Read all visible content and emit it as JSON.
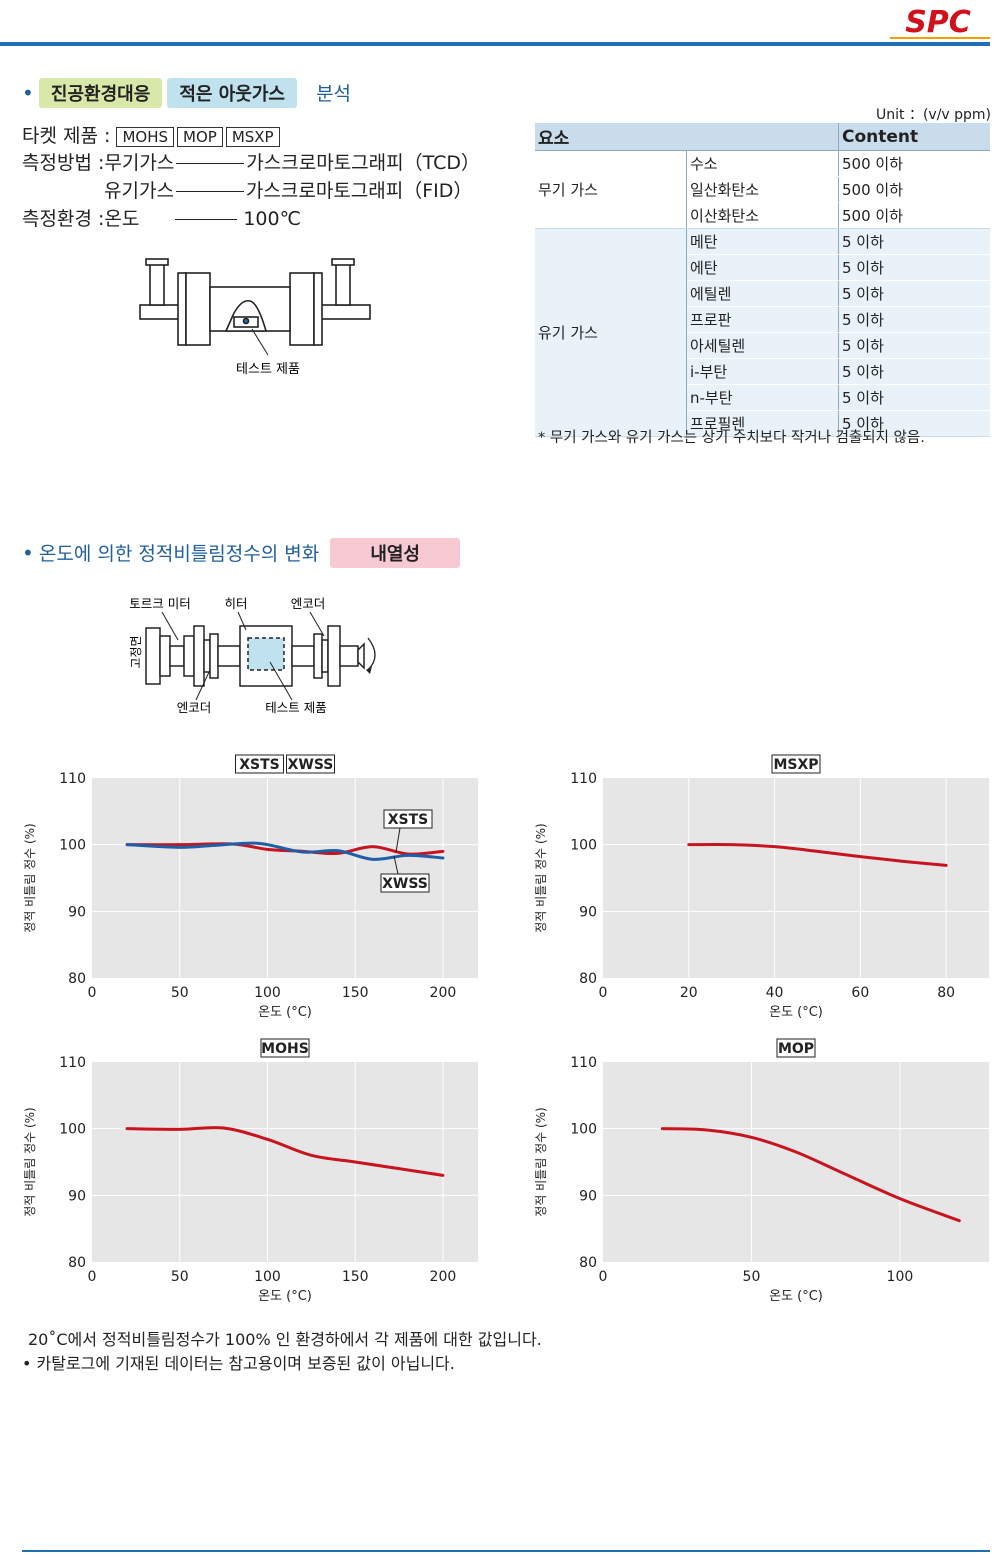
{
  "brand": {
    "logo_text": "SPC"
  },
  "section1": {
    "tag1": "진공환경대응",
    "tag2": "적은 아웃가스",
    "suffix": "분석",
    "target_label": "타켓 제품 :",
    "targets": [
      "MOHS",
      "MOP",
      "MSXP"
    ],
    "method_label": "측정방법 :",
    "method1_left": "무기가스",
    "method1_right": "가스크로마토그래피（TCD）",
    "method2_left": "유기가스",
    "method2_right": "가스크로마토그래피（FID）",
    "env_label": "측정환경 :",
    "env_left": "온도",
    "env_right": "100℃",
    "diagram_label": "테스트 제품"
  },
  "gas_table": {
    "unit": "Unit ：(v/v ppm)",
    "header": {
      "element": "요소",
      "content": "Content"
    },
    "groups": [
      {
        "name": "무기 가스",
        "rows": [
          {
            "gas": "수소",
            "value": "500 이하"
          },
          {
            "gas": "일산화탄소",
            "value": "500 이하"
          },
          {
            "gas": "이산화탄소",
            "value": "500 이하"
          }
        ]
      },
      {
        "name": "유기 가스",
        "rows": [
          {
            "gas": "메탄",
            "value": "5 이하"
          },
          {
            "gas": "에탄",
            "value": "5 이하"
          },
          {
            "gas": "에틸렌",
            "value": "5 이하"
          },
          {
            "gas": "프로판",
            "value": "5 이하"
          },
          {
            "gas": "아세틸렌",
            "value": "5 이하"
          },
          {
            "gas": "i-부탄",
            "value": "5 이하"
          },
          {
            "gas": "n-부탄",
            "value": "5 이하"
          },
          {
            "gas": "프로필렌",
            "value": "5 이하"
          }
        ]
      }
    ],
    "note": "* 무기 가스와 유기 가스는 상기 수치보다 작거나 검출되지 않음."
  },
  "section2": {
    "title": "온도에 의한 정적비틀림정수의 변화",
    "tag": "내열성",
    "diagram": {
      "torque_meter": "토르크 미터",
      "heater": "히터",
      "encoder_top": "엔코더",
      "fixed": "고정면",
      "encoder_bottom": "엔코더",
      "test_product": "테스트 제품"
    }
  },
  "colors": {
    "red": "#c8141e",
    "blue": "#1f5fa8",
    "plot_bg": "#e6e6e6",
    "accent": "#1f6fb5"
  },
  "chart_data": [
    {
      "type": "line",
      "title_boxes": [
        "XSTS",
        "XWSS"
      ],
      "xlabel": "온도 (°C)",
      "ylabel": "정적 비틀림 정수 (%)",
      "xlim": [
        0,
        220
      ],
      "ylim": [
        80,
        110
      ],
      "xticks": [
        0,
        50,
        100,
        150,
        200
      ],
      "yticks": [
        80,
        90,
        100,
        110
      ],
      "series": [
        {
          "name": "XSTS",
          "color": "#c8141e",
          "x": [
            20,
            50,
            80,
            100,
            120,
            140,
            160,
            180,
            200
          ],
          "y": [
            100,
            100,
            100.1,
            99.3,
            99.0,
            98.7,
            99.7,
            98.6,
            99.0
          ]
        },
        {
          "name": "XWSS",
          "color": "#1f5fa8",
          "x": [
            20,
            50,
            70,
            95,
            120,
            140,
            160,
            180,
            200
          ],
          "y": [
            100,
            99.6,
            99.9,
            100.2,
            98.9,
            99.1,
            97.8,
            98.4,
            98.0
          ]
        }
      ]
    },
    {
      "type": "line",
      "title_boxes": [
        "MSXP"
      ],
      "xlabel": "온도 (°C)",
      "ylabel": "정적 비틀림 정수 (%)",
      "xlim": [
        0,
        90
      ],
      "ylim": [
        80,
        110
      ],
      "xticks": [
        0,
        20,
        40,
        60,
        80
      ],
      "yticks": [
        80,
        90,
        100,
        110
      ],
      "series": [
        {
          "color": "#c8141e",
          "x": [
            20,
            30,
            40,
            50,
            60,
            70,
            80
          ],
          "y": [
            100,
            100,
            99.7,
            99.0,
            98.2,
            97.5,
            96.9
          ]
        }
      ]
    },
    {
      "type": "line",
      "title_boxes": [
        "MOHS"
      ],
      "xlabel": "온도 (°C)",
      "ylabel": "정적 비틀림 정수 (%)",
      "xlim": [
        0,
        220
      ],
      "ylim": [
        80,
        110
      ],
      "xticks": [
        0,
        50,
        100,
        150,
        200
      ],
      "yticks": [
        80,
        90,
        100,
        110
      ],
      "series": [
        {
          "color": "#c8141e",
          "x": [
            20,
            50,
            75,
            100,
            125,
            150,
            175,
            200
          ],
          "y": [
            100,
            99.9,
            100.1,
            98.4,
            96.0,
            95.0,
            94.0,
            93.0
          ]
        }
      ]
    },
    {
      "type": "line",
      "title_boxes": [
        "MOP"
      ],
      "xlabel": "온도 (°C)",
      "ylabel": "정적 비틀림 정수 (%)",
      "xlim": [
        0,
        130
      ],
      "ylim": [
        80,
        110
      ],
      "xticks": [
        0,
        50,
        100
      ],
      "yticks": [
        80,
        90,
        100,
        110
      ],
      "series": [
        {
          "color": "#c8141e",
          "x": [
            20,
            35,
            50,
            65,
            80,
            100,
            120
          ],
          "y": [
            100,
            99.8,
            98.7,
            96.5,
            93.5,
            89.5,
            86.2
          ]
        }
      ]
    }
  ],
  "footnotes": {
    "line1": "20˚C에서 정적비틀림정수가  100% 인 환경하에서 각 제품에 대한 값입니다.",
    "line2": "• 카탈로그에 기재된 데이터는 참고용이며 보증된 값이 아닙니다."
  }
}
